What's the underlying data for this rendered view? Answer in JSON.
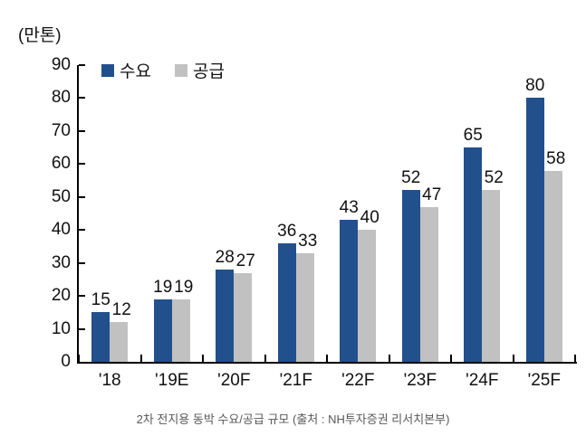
{
  "unit_label": "(만톤)",
  "legend": {
    "demand_label": "수요",
    "supply_label": "공급"
  },
  "caption": "2차 전지용 동박 수요/공급 규모 (출처 : NH투자증권 리서치본부)",
  "colors": {
    "demand": "#21508D",
    "supply": "#C1C1C1",
    "axis": "#000000",
    "label_text": "#111111",
    "caption_text": "#595959",
    "background": "#FFFFFF"
  },
  "chart_data": {
    "type": "bar",
    "categories": [
      "'18",
      "'19E",
      "'20F",
      "'21F",
      "'22F",
      "'23F",
      "'24F",
      "'25F"
    ],
    "series": [
      {
        "name": "수요",
        "color": "#21508D",
        "values": [
          15,
          19,
          28,
          36,
          43,
          52,
          65,
          80
        ]
      },
      {
        "name": "공급",
        "color": "#C1C1C1",
        "values": [
          12,
          19,
          27,
          33,
          40,
          47,
          52,
          58
        ]
      }
    ],
    "title": "2차 전지용 동박 수요/공급 규모 (출처 : NH투자증권 리서치본부)",
    "xlabel": "",
    "ylabel": "(만톤)",
    "ylim": [
      0,
      90
    ],
    "y_ticks": [
      0,
      10,
      20,
      30,
      40,
      50,
      60,
      70,
      80,
      90
    ],
    "grid": false,
    "legend_position": "top-left",
    "data_labels": true
  }
}
